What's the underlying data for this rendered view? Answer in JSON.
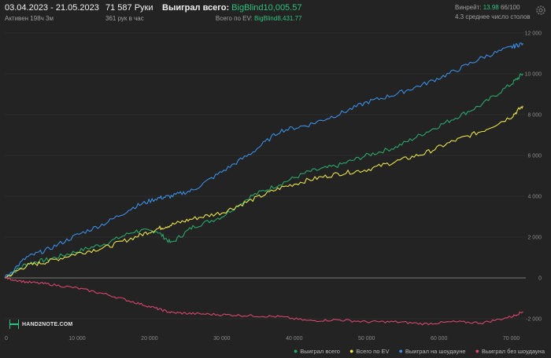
{
  "header": {
    "date_range": "03.04.2023 - 21.05.2023",
    "active": "Активен 198ч 3м",
    "hands": "71 587 Руки",
    "hands_rate": "361 рук в час",
    "won_label": "Выиграл всего:",
    "won_value": "BigBlind10,005.57",
    "ev_label": "Всего по EV:",
    "ev_value": "BigBlind8,431.77",
    "winrate_label": "Винрейт:",
    "winrate_value": "13.98",
    "winrate_extra": "66/100",
    "avg_tables": "4.3 среднее число столов"
  },
  "logo": {
    "text": "HAND2NOTE.COM"
  },
  "legend": [
    {
      "label": "Выиграл всего",
      "color": "#2aa86a"
    },
    {
      "label": "Всего по EV",
      "color": "#e8e34a"
    },
    {
      "label": "Выиграл на шоудауне",
      "color": "#3a8ee6"
    },
    {
      "label": "Выиграл без шоудауна",
      "color": "#d9466e"
    }
  ],
  "chart_data": {
    "type": "line",
    "xlim": [
      0,
      72000
    ],
    "ylim": [
      -3000,
      12000
    ],
    "x_ticks": [
      "0",
      "10 000",
      "20 000",
      "30 000",
      "40 000",
      "50 000",
      "60 000",
      "70 000"
    ],
    "y_ticks": [
      "12 000",
      "10 000",
      "8 000",
      "6 000",
      "4 000",
      "2 000",
      "0",
      "-2 000"
    ],
    "x": [
      0,
      3000,
      6000,
      10000,
      14000,
      18000,
      21000,
      23000,
      26000,
      30000,
      34000,
      38000,
      42000,
      46000,
      50000,
      54000,
      58000,
      62000,
      66000,
      70000,
      71600
    ],
    "series": [
      {
        "name": "Выиграл всего",
        "color": "#2aa86a",
        "values": [
          0,
          700,
          900,
          1300,
          1700,
          2300,
          2300,
          1700,
          2500,
          3000,
          4000,
          4600,
          5200,
          5500,
          6000,
          6400,
          7100,
          7800,
          8500,
          9500,
          10005
        ]
      },
      {
        "name": "Всего по EV",
        "color": "#e8e34a",
        "values": [
          0,
          600,
          800,
          1200,
          1500,
          2000,
          2400,
          2600,
          2900,
          3200,
          3800,
          4400,
          4800,
          5100,
          5300,
          5700,
          6100,
          6700,
          7200,
          7900,
          8431
        ]
      },
      {
        "name": "Выиграл на шоудауне",
        "color": "#3a8ee6",
        "values": [
          0,
          1000,
          1400,
          2100,
          2700,
          3500,
          3900,
          4000,
          4300,
          5200,
          6100,
          7200,
          7500,
          8000,
          8600,
          9000,
          9500,
          10100,
          10800,
          11300,
          11500
        ]
      },
      {
        "name": "Выиграл без шоудауна",
        "color": "#d9466e",
        "values": [
          0,
          -200,
          -300,
          -500,
          -800,
          -1200,
          -1500,
          -1700,
          -1750,
          -1800,
          -1850,
          -1900,
          -2100,
          -2050,
          -2150,
          -2150,
          -2250,
          -2150,
          -2200,
          -1900,
          -1650
        ]
      }
    ]
  }
}
